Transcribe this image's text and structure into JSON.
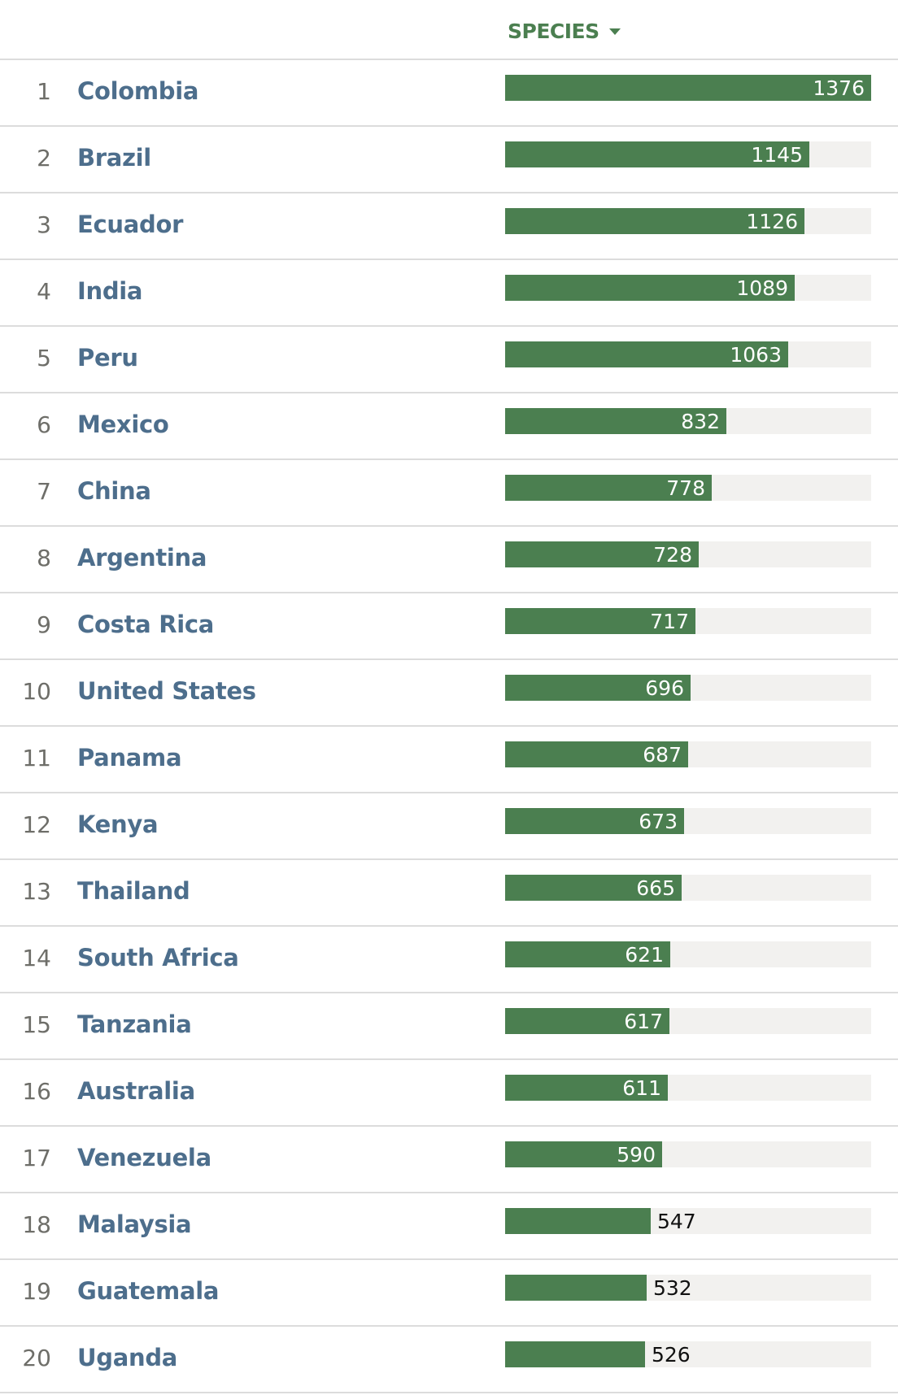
{
  "header": {
    "column_label": "SPECIES",
    "sort_icon": "caret-down-icon"
  },
  "colors": {
    "bar": "#4b7f50",
    "track": "#f2f1ef",
    "name": "#4d6e8c",
    "rank": "#6e6e69",
    "divider": "#dcdcdc"
  },
  "rows": [
    {
      "rank": "1",
      "country": "Colombia",
      "value": 1376
    },
    {
      "rank": "2",
      "country": "Brazil",
      "value": 1145
    },
    {
      "rank": "3",
      "country": "Ecuador",
      "value": 1126
    },
    {
      "rank": "4",
      "country": "India",
      "value": 1089
    },
    {
      "rank": "5",
      "country": "Peru",
      "value": 1063
    },
    {
      "rank": "6",
      "country": "Mexico",
      "value": 832
    },
    {
      "rank": "7",
      "country": "China",
      "value": 778
    },
    {
      "rank": "8",
      "country": "Argentina",
      "value": 728
    },
    {
      "rank": "9",
      "country": "Costa Rica",
      "value": 717
    },
    {
      "rank": "10",
      "country": "United States",
      "value": 696
    },
    {
      "rank": "11",
      "country": "Panama",
      "value": 687
    },
    {
      "rank": "12",
      "country": "Kenya",
      "value": 673
    },
    {
      "rank": "13",
      "country": "Thailand",
      "value": 665
    },
    {
      "rank": "14",
      "country": "South Africa",
      "value": 621
    },
    {
      "rank": "15",
      "country": "Tanzania",
      "value": 617
    },
    {
      "rank": "16",
      "country": "Australia",
      "value": 611
    },
    {
      "rank": "17",
      "country": "Venezuela",
      "value": 590
    },
    {
      "rank": "18",
      "country": "Malaysia",
      "value": 547
    },
    {
      "rank": "19",
      "country": "Guatemala",
      "value": 532
    },
    {
      "rank": "20",
      "country": "Uganda",
      "value": 526
    }
  ],
  "chart_data": {
    "type": "bar",
    "orientation": "horizontal",
    "title": "",
    "xlabel": "SPECIES",
    "ylabel": "",
    "categories": [
      "Colombia",
      "Brazil",
      "Ecuador",
      "India",
      "Peru",
      "Mexico",
      "China",
      "Argentina",
      "Costa Rica",
      "United States",
      "Panama",
      "Kenya",
      "Thailand",
      "South Africa",
      "Tanzania",
      "Australia",
      "Venezuela",
      "Malaysia",
      "Guatemala",
      "Uganda"
    ],
    "values": [
      1376,
      1145,
      1126,
      1089,
      1063,
      832,
      778,
      728,
      717,
      696,
      687,
      673,
      665,
      621,
      617,
      611,
      590,
      547,
      532,
      526
    ],
    "xlim": [
      0,
      1376
    ],
    "grid": false,
    "legend": "none",
    "sorted": "descending"
  }
}
